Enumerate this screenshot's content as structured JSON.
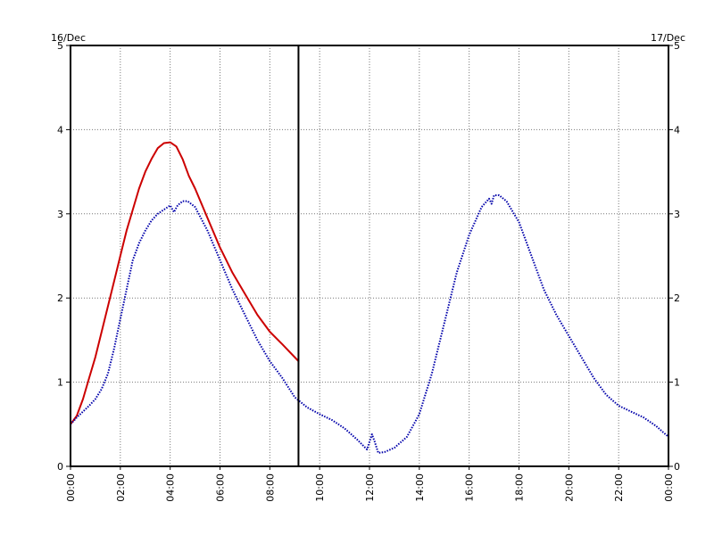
{
  "chart_data": {
    "type": "line",
    "title": "",
    "xlabel": "",
    "ylabel": "",
    "date_left": "16/Dec",
    "date_right": "17/Dec",
    "x_unit": "hours",
    "xlim": [
      0,
      24
    ],
    "ylim": [
      0,
      5
    ],
    "grid": true,
    "grid_style": "dotted",
    "x_ticks": [
      0,
      2,
      4,
      6,
      8,
      10,
      12,
      14,
      16,
      18,
      20,
      22,
      24
    ],
    "x_tick_labels": [
      "00:00",
      "02:00",
      "04:00",
      "06:00",
      "08:00",
      "10:00",
      "12:00",
      "14:00",
      "16:00",
      "18:00",
      "20:00",
      "22:00",
      "00:00"
    ],
    "y_ticks": [
      0,
      1,
      2,
      3,
      4,
      5
    ],
    "y_tick_labels": [
      "0",
      "1",
      "2",
      "3",
      "4",
      "5"
    ],
    "vertical_marker": {
      "x": 9.15,
      "color": "#000000"
    },
    "series": [
      {
        "color": "#cc0000",
        "style": "solid",
        "x": [
          0,
          0.25,
          0.5,
          0.75,
          1.0,
          1.25,
          1.5,
          1.75,
          2.0,
          2.25,
          2.5,
          2.75,
          3.0,
          3.25,
          3.5,
          3.75,
          4.0,
          4.25,
          4.5,
          4.75,
          5.0,
          5.5,
          6.0,
          6.5,
          7.0,
          7.5,
          8.0,
          8.5,
          9.15
        ],
        "y": [
          0.5,
          0.6,
          0.8,
          1.05,
          1.3,
          1.6,
          1.9,
          2.2,
          2.5,
          2.8,
          3.05,
          3.3,
          3.5,
          3.65,
          3.78,
          3.84,
          3.85,
          3.8,
          3.65,
          3.45,
          3.3,
          2.95,
          2.6,
          2.3,
          2.05,
          1.8,
          1.6,
          1.45,
          1.25
        ]
      },
      {
        "color": "#0000aa",
        "style": "dotted",
        "x": [
          0,
          0.25,
          0.5,
          0.75,
          1.0,
          1.25,
          1.5,
          1.75,
          2.0,
          2.25,
          2.5,
          2.75,
          3.0,
          3.25,
          3.5,
          3.75,
          4.0,
          4.15,
          4.3,
          4.5,
          4.7,
          5.0,
          5.5,
          6.0,
          6.5,
          7.0,
          7.5,
          8.0,
          8.5,
          9.0,
          9.5,
          10.0,
          10.5,
          11.0,
          11.5,
          11.9,
          12.1,
          12.2,
          12.35,
          12.6,
          13.0,
          13.5,
          14.0,
          14.5,
          15.0,
          15.5,
          16.0,
          16.5,
          16.8,
          16.9,
          17.0,
          17.2,
          17.5,
          18.0,
          18.5,
          19.0,
          19.5,
          20.0,
          20.5,
          21.0,
          21.5,
          22.0,
          22.5,
          23.0,
          23.5,
          24.0
        ],
        "y": [
          0.5,
          0.58,
          0.65,
          0.72,
          0.8,
          0.92,
          1.1,
          1.4,
          1.75,
          2.1,
          2.45,
          2.65,
          2.8,
          2.92,
          3.0,
          3.05,
          3.1,
          3.02,
          3.1,
          3.15,
          3.15,
          3.08,
          2.8,
          2.45,
          2.1,
          1.8,
          1.5,
          1.25,
          1.05,
          0.82,
          0.7,
          0.62,
          0.55,
          0.45,
          0.32,
          0.2,
          0.38,
          0.3,
          0.16,
          0.17,
          0.22,
          0.35,
          0.62,
          1.1,
          1.7,
          2.3,
          2.75,
          3.08,
          3.18,
          3.12,
          3.22,
          3.22,
          3.15,
          2.9,
          2.5,
          2.1,
          1.8,
          1.55,
          1.3,
          1.05,
          0.85,
          0.72,
          0.65,
          0.58,
          0.48,
          0.35
        ]
      }
    ]
  }
}
